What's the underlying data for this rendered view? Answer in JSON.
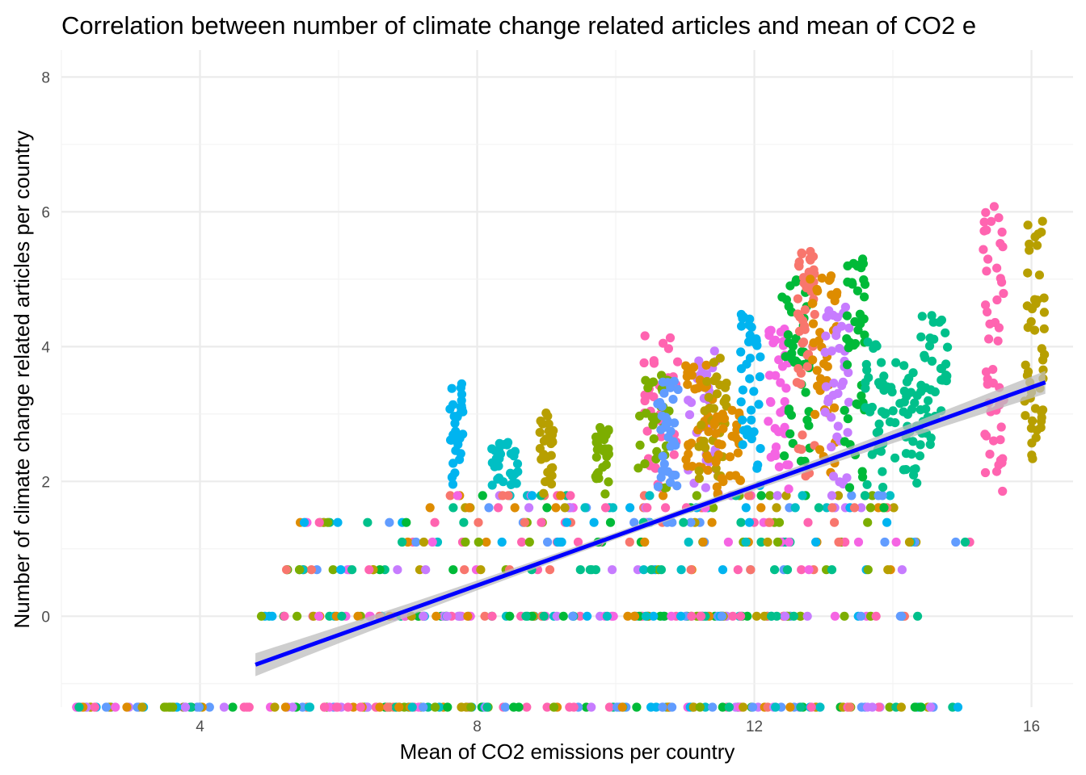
{
  "chart_data": {
    "type": "scatter",
    "title": "Correlation between number of climate change related articles and mean of CO2 e",
    "xlabel": "Mean of CO2 emissions per country",
    "ylabel": "Number of climate change related articles per country",
    "xlim": [
      2.0,
      16.6
    ],
    "ylim": [
      -1.35,
      8.4
    ],
    "x_ticks": [
      "4",
      "8",
      "12",
      "16"
    ],
    "y_ticks": [
      "0",
      "2",
      "4",
      "6",
      "8"
    ],
    "grid": true,
    "legend": "none",
    "floor_value": -1.35,
    "series_colors": [
      "#F8766D",
      "#DE8C00",
      "#B79F00",
      "#7CAE00",
      "#00BA38",
      "#00C08B",
      "#00BFC4",
      "#00B4F0",
      "#619CFF",
      "#C77CFF",
      "#F564E3",
      "#FF64B0"
    ],
    "fit_line": {
      "color": "#0000FF",
      "band_color": "#BEBEBE",
      "x": [
        4.8,
        16.2
      ],
      "y": [
        -0.72,
        3.47
      ],
      "band_halfwidth_ends": 0.17,
      "band_halfwidth_mid": 0.05
    },
    "clusters": [
      {
        "x": [
          10.4,
          10.9
        ],
        "y_top": 4.25,
        "color": "#FF64B0"
      },
      {
        "x": [
          10.3,
          10.8
        ],
        "y_top": 3.6,
        "color": "#7CAE00"
      },
      {
        "x": [
          10.6,
          10.9
        ],
        "y_top": 3.5,
        "color": "#619CFF"
      },
      {
        "x": [
          11.0,
          11.5
        ],
        "y_top": 3.95,
        "color": "#C77CFF"
      },
      {
        "x": [
          11.0,
          11.4
        ],
        "y_top": 3.75,
        "color": "#DE8C00"
      },
      {
        "x": [
          11.2,
          11.6
        ],
        "y_top": 3.85,
        "color": "#B79F00"
      },
      {
        "x": [
          11.4,
          11.8
        ],
        "y_top": 3.1,
        "color": "#DE8C00"
      },
      {
        "x": [
          11.8,
          12.1
        ],
        "y_top": 4.5,
        "color": "#00B4F0"
      },
      {
        "x": [
          12.2,
          12.5
        ],
        "y_top": 4.3,
        "color": "#F564E3"
      },
      {
        "x": [
          12.4,
          12.8
        ],
        "y_top": 5.0,
        "color": "#00BA38"
      },
      {
        "x": [
          12.6,
          12.9
        ],
        "y_top": 5.45,
        "color": "#F8766D"
      },
      {
        "x": [
          12.8,
          13.2
        ],
        "y_top": 5.1,
        "color": "#DE8C00"
      },
      {
        "x": [
          13.0,
          13.4
        ],
        "y_top": 4.6,
        "color": "#C77CFF"
      },
      {
        "x": [
          13.3,
          13.6
        ],
        "y_top": 5.3,
        "color": "#00BA38"
      },
      {
        "x": [
          13.6,
          14.0
        ],
        "y_top": 4.1,
        "color": "#00C08B"
      },
      {
        "x": [
          14.0,
          14.4
        ],
        "y_top": 3.8,
        "color": "#00C08B"
      },
      {
        "x": [
          14.4,
          14.8
        ],
        "y_top": 4.5,
        "color": "#00C08B"
      },
      {
        "x": [
          15.3,
          15.6
        ],
        "y_top": 6.15,
        "color": "#FF64B0"
      },
      {
        "x": [
          15.9,
          16.2
        ],
        "y_top": 5.95,
        "color": "#B79F00"
      },
      {
        "x": [
          7.6,
          7.8
        ],
        "y_top": 3.45,
        "color": "#00B4F0"
      },
      {
        "x": [
          8.9,
          9.1
        ],
        "y_top": 3.05,
        "color": "#B79F00"
      },
      {
        "x": [
          8.2,
          8.6
        ],
        "y_top": 2.6,
        "color": "#00BFC4"
      },
      {
        "x": [
          9.7,
          9.9
        ],
        "y_top": 2.8,
        "color": "#7CAE00"
      }
    ],
    "bands": [
      {
        "y": 0.0,
        "x": [
          4.8,
          14.4
        ]
      },
      {
        "y": 0.69,
        "x": [
          5.2,
          14.3
        ]
      },
      {
        "y": 1.1,
        "x": [
          6.9,
          15.2
        ]
      },
      {
        "y": 1.39,
        "x": [
          5.1,
          14.2
        ]
      },
      {
        "y": 1.61,
        "x": [
          7.3,
          14.4
        ]
      },
      {
        "y": 1.79,
        "x": [
          7.5,
          14.3
        ]
      },
      {
        "y": -1.35,
        "x": [
          2.2,
          15.0
        ]
      }
    ]
  }
}
